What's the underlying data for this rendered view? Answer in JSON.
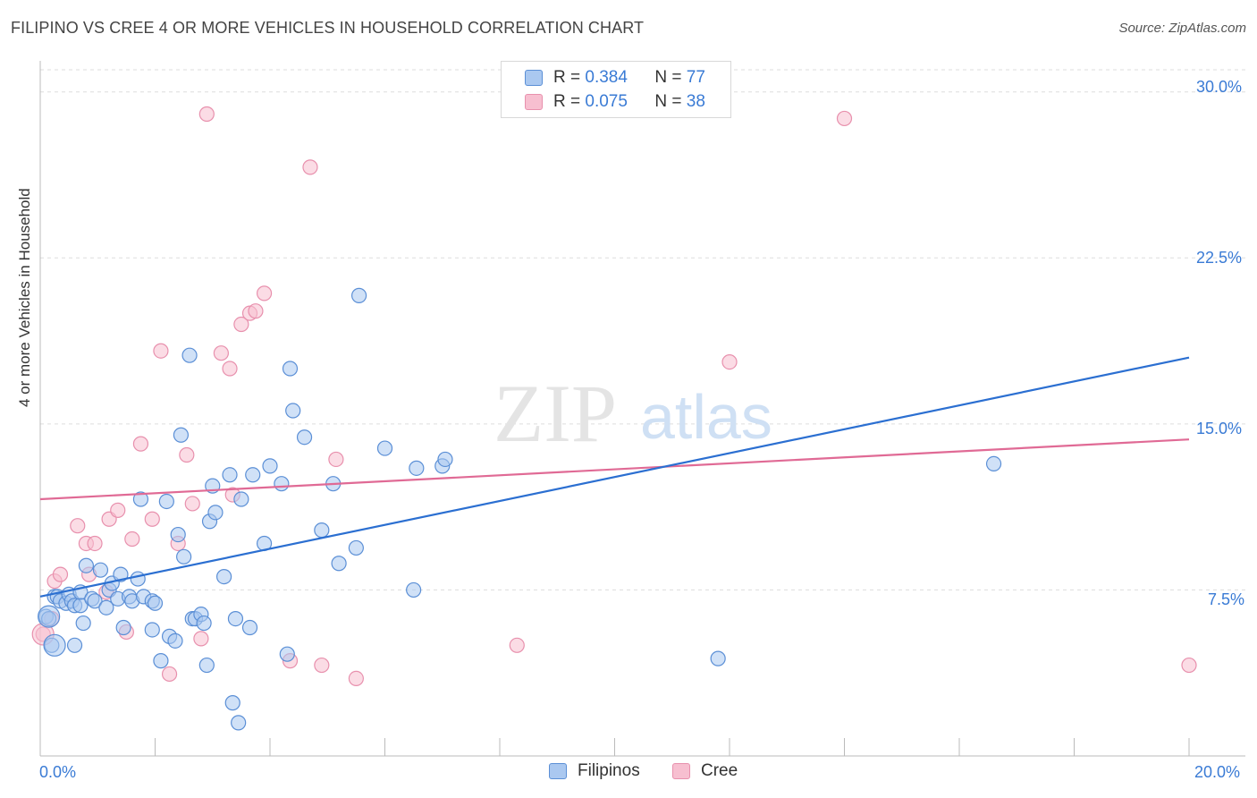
{
  "title": "FILIPINO VS CREE 4 OR MORE VEHICLES IN HOUSEHOLD CORRELATION CHART",
  "source": "Source: ZipAtlas.com",
  "watermark": {
    "zip": "ZIP",
    "atlas": "atlas"
  },
  "legend": {
    "rows": [
      {
        "r_label": "R = ",
        "r_value": "0.384",
        "n_label": "N = ",
        "n_value": "77"
      },
      {
        "r_label": "R = ",
        "r_value": "0.075",
        "n_label": "N = ",
        "n_value": "38"
      }
    ]
  },
  "bottom_legend": {
    "filipinos": "Filipinos",
    "cree": "Cree"
  },
  "colors": {
    "filipinos_fill": "#aac8f0",
    "filipinos_stroke": "#5b8fd6",
    "filipinos_line": "#2b6fd1",
    "cree_fill": "#f7bfd0",
    "cree_stroke": "#e890ad",
    "cree_line": "#e06a95",
    "tick_text": "#3a7bd5",
    "grid": "#dddddd"
  },
  "chart_data": {
    "type": "scatter",
    "title": "FILIPINO VS CREE 4 OR MORE VEHICLES IN HOUSEHOLD CORRELATION CHART",
    "xlabel": "",
    "ylabel": "4 or more Vehicles in Household",
    "xlim": [
      0,
      20
    ],
    "ylim": [
      0,
      31
    ],
    "x_tick_labels": [
      "0.0%",
      "20.0%"
    ],
    "y_ticks": [
      7.5,
      15.0,
      22.5,
      30.0
    ],
    "y_tick_labels": [
      "7.5%",
      "15.0%",
      "22.5%",
      "30.0%"
    ],
    "grid": true,
    "series": [
      {
        "name": "Filipinos",
        "r": 0.384,
        "n": 77,
        "trend": {
          "x": [
            0,
            20
          ],
          "y": [
            7.2,
            18.0
          ]
        },
        "points": [
          [
            0.1,
            6.3
          ],
          [
            0.15,
            6.2
          ],
          [
            0.2,
            5.0
          ],
          [
            0.25,
            7.2
          ],
          [
            0.3,
            7.2
          ],
          [
            0.35,
            7.0
          ],
          [
            0.45,
            6.9
          ],
          [
            0.5,
            7.3
          ],
          [
            0.55,
            7.0
          ],
          [
            0.6,
            6.8
          ],
          [
            0.6,
            5.0
          ],
          [
            0.7,
            6.8
          ],
          [
            0.7,
            7.4
          ],
          [
            0.75,
            6.0
          ],
          [
            0.8,
            8.6
          ],
          [
            0.9,
            7.1
          ],
          [
            0.95,
            7.0
          ],
          [
            1.05,
            8.4
          ],
          [
            1.15,
            6.7
          ],
          [
            1.2,
            7.5
          ],
          [
            1.25,
            7.8
          ],
          [
            1.35,
            7.1
          ],
          [
            1.4,
            8.2
          ],
          [
            1.45,
            5.8
          ],
          [
            1.55,
            7.2
          ],
          [
            1.6,
            7.0
          ],
          [
            1.7,
            8.0
          ],
          [
            1.75,
            11.6
          ],
          [
            1.8,
            7.2
          ],
          [
            1.95,
            7.0
          ],
          [
            1.95,
            5.7
          ],
          [
            2.0,
            6.9
          ],
          [
            2.1,
            4.3
          ],
          [
            2.2,
            11.5
          ],
          [
            2.25,
            5.4
          ],
          [
            2.35,
            5.2
          ],
          [
            2.4,
            10.0
          ],
          [
            2.45,
            14.5
          ],
          [
            2.5,
            9.0
          ],
          [
            2.6,
            18.1
          ],
          [
            2.65,
            6.2
          ],
          [
            2.7,
            6.2
          ],
          [
            2.8,
            6.4
          ],
          [
            2.85,
            6.0
          ],
          [
            2.9,
            4.1
          ],
          [
            2.95,
            10.6
          ],
          [
            3.0,
            12.2
          ],
          [
            3.05,
            11.0
          ],
          [
            3.2,
            8.1
          ],
          [
            3.3,
            12.7
          ],
          [
            3.35,
            2.4
          ],
          [
            3.4,
            6.2
          ],
          [
            3.45,
            1.5
          ],
          [
            3.5,
            11.6
          ],
          [
            3.65,
            5.8
          ],
          [
            3.7,
            12.7
          ],
          [
            3.9,
            9.6
          ],
          [
            4.0,
            13.1
          ],
          [
            4.2,
            12.3
          ],
          [
            4.3,
            4.6
          ],
          [
            4.35,
            17.5
          ],
          [
            4.4,
            15.6
          ],
          [
            4.6,
            14.4
          ],
          [
            4.9,
            10.2
          ],
          [
            5.1,
            12.3
          ],
          [
            5.2,
            8.7
          ],
          [
            5.5,
            9.4
          ],
          [
            5.55,
            20.8
          ],
          [
            6.0,
            13.9
          ],
          [
            6.5,
            7.5
          ],
          [
            6.55,
            13.0
          ],
          [
            7.0,
            13.1
          ],
          [
            7.05,
            13.4
          ],
          [
            11.8,
            4.4
          ],
          [
            16.6,
            13.2
          ]
        ],
        "big_points": [
          [
            0.15,
            6.3
          ],
          [
            0.25,
            5.0
          ]
        ]
      },
      {
        "name": "Cree",
        "r": 0.075,
        "n": 38,
        "trend": {
          "x": [
            0,
            20
          ],
          "y": [
            11.6,
            14.3
          ]
        },
        "points": [
          [
            0.05,
            5.5
          ],
          [
            0.2,
            6.2
          ],
          [
            0.25,
            7.9
          ],
          [
            0.35,
            8.2
          ],
          [
            0.65,
            10.4
          ],
          [
            0.8,
            9.6
          ],
          [
            0.85,
            8.2
          ],
          [
            0.95,
            9.6
          ],
          [
            1.15,
            7.4
          ],
          [
            1.2,
            10.7
          ],
          [
            1.35,
            11.1
          ],
          [
            1.5,
            5.6
          ],
          [
            1.6,
            9.8
          ],
          [
            1.75,
            14.1
          ],
          [
            1.95,
            10.7
          ],
          [
            2.1,
            18.3
          ],
          [
            2.25,
            3.7
          ],
          [
            2.4,
            9.6
          ],
          [
            2.55,
            13.6
          ],
          [
            2.65,
            11.4
          ],
          [
            2.8,
            5.3
          ],
          [
            2.9,
            29.0
          ],
          [
            3.15,
            18.2
          ],
          [
            3.3,
            17.5
          ],
          [
            3.35,
            11.8
          ],
          [
            3.5,
            19.5
          ],
          [
            3.65,
            20.0
          ],
          [
            3.75,
            20.1
          ],
          [
            3.9,
            20.9
          ],
          [
            4.35,
            4.3
          ],
          [
            4.7,
            26.6
          ],
          [
            4.9,
            4.1
          ],
          [
            5.15,
            13.4
          ],
          [
            5.5,
            3.5
          ],
          [
            8.3,
            5.0
          ],
          [
            12.0,
            17.8
          ],
          [
            14.0,
            28.8
          ],
          [
            20.0,
            4.1
          ]
        ],
        "big_points": [
          [
            0.05,
            5.5
          ]
        ]
      }
    ]
  }
}
